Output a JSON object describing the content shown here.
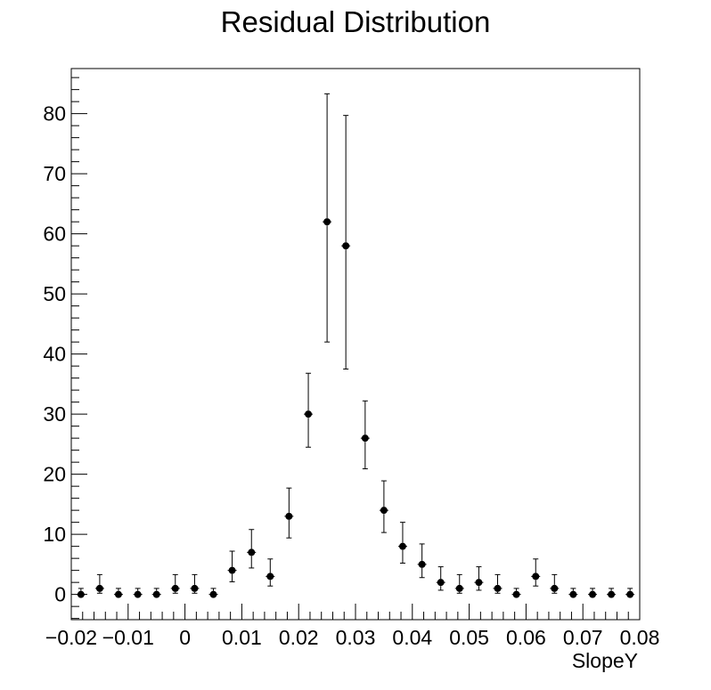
{
  "chart_data": {
    "type": "scatter",
    "title": "Residual Distribution",
    "xlabel": "SlopeY",
    "ylabel": "",
    "xlim": [
      -0.02,
      0.08
    ],
    "ylim": [
      -4.2,
      87.5
    ],
    "xticks": [
      -0.02,
      -0.01,
      0,
      0.01,
      0.02,
      0.03,
      0.04,
      0.05,
      0.06,
      0.07,
      0.08
    ],
    "xtick_labels": [
      "−0.02",
      "−0.01",
      "0",
      "0.01",
      "0.02",
      "0.03",
      "0.04",
      "0.05",
      "0.06",
      "0.07",
      "0.08"
    ],
    "yticks": [
      0,
      10,
      20,
      30,
      40,
      50,
      60,
      70,
      80
    ],
    "ytick_labels": [
      "0",
      "10",
      "20",
      "30",
      "40",
      "50",
      "60",
      "70",
      "80"
    ],
    "grid": false,
    "marker_color": "#000000",
    "points": [
      {
        "x": -0.0183,
        "y": 0,
        "err_low": 0.0,
        "err_high": 1.0
      },
      {
        "x": -0.015,
        "y": 1,
        "err_low": 0.8,
        "err_high": 2.3
      },
      {
        "x": -0.0117,
        "y": 0,
        "err_low": 0.0,
        "err_high": 1.0
      },
      {
        "x": -0.0083,
        "y": 0,
        "err_low": 0.0,
        "err_high": 1.0
      },
      {
        "x": -0.005,
        "y": 0,
        "err_low": 0.0,
        "err_high": 1.0
      },
      {
        "x": -0.0017,
        "y": 1,
        "err_low": 0.8,
        "err_high": 2.3
      },
      {
        "x": 0.0017,
        "y": 1,
        "err_low": 0.8,
        "err_high": 2.3
      },
      {
        "x": 0.005,
        "y": 0,
        "err_low": 0.0,
        "err_high": 1.0
      },
      {
        "x": 0.0083,
        "y": 4,
        "err_low": 1.9,
        "err_high": 3.2
      },
      {
        "x": 0.0117,
        "y": 7,
        "err_low": 2.6,
        "err_high": 3.8
      },
      {
        "x": 0.015,
        "y": 3,
        "err_low": 1.6,
        "err_high": 2.9
      },
      {
        "x": 0.0183,
        "y": 13,
        "err_low": 3.6,
        "err_high": 4.7
      },
      {
        "x": 0.0217,
        "y": 30,
        "err_low": 5.5,
        "err_high": 6.8
      },
      {
        "x": 0.025,
        "y": 62,
        "err_low": 20.0,
        "err_high": 21.3
      },
      {
        "x": 0.0283,
        "y": 58,
        "err_low": 20.5,
        "err_high": 21.7
      },
      {
        "x": 0.0317,
        "y": 26,
        "err_low": 5.1,
        "err_high": 6.2
      },
      {
        "x": 0.035,
        "y": 14,
        "err_low": 3.7,
        "err_high": 4.9
      },
      {
        "x": 0.0383,
        "y": 8,
        "err_low": 2.8,
        "err_high": 4.0
      },
      {
        "x": 0.0417,
        "y": 5,
        "err_low": 2.2,
        "err_high": 3.4
      },
      {
        "x": 0.045,
        "y": 2,
        "err_low": 1.3,
        "err_high": 2.6
      },
      {
        "x": 0.0483,
        "y": 1,
        "err_low": 0.8,
        "err_high": 2.3
      },
      {
        "x": 0.0517,
        "y": 2,
        "err_low": 1.3,
        "err_high": 2.6
      },
      {
        "x": 0.055,
        "y": 1,
        "err_low": 0.8,
        "err_high": 2.3
      },
      {
        "x": 0.0583,
        "y": 0,
        "err_low": 0.0,
        "err_high": 1.0
      },
      {
        "x": 0.0617,
        "y": 3,
        "err_low": 1.6,
        "err_high": 2.9
      },
      {
        "x": 0.065,
        "y": 1,
        "err_low": 0.8,
        "err_high": 2.3
      },
      {
        "x": 0.0683,
        "y": 0,
        "err_low": 0.0,
        "err_high": 1.0
      },
      {
        "x": 0.0717,
        "y": 0,
        "err_low": 0.0,
        "err_high": 1.0
      },
      {
        "x": 0.075,
        "y": 0,
        "err_low": 0.0,
        "err_high": 1.0
      },
      {
        "x": 0.0783,
        "y": 0,
        "err_low": 0.0,
        "err_high": 1.0
      }
    ]
  }
}
